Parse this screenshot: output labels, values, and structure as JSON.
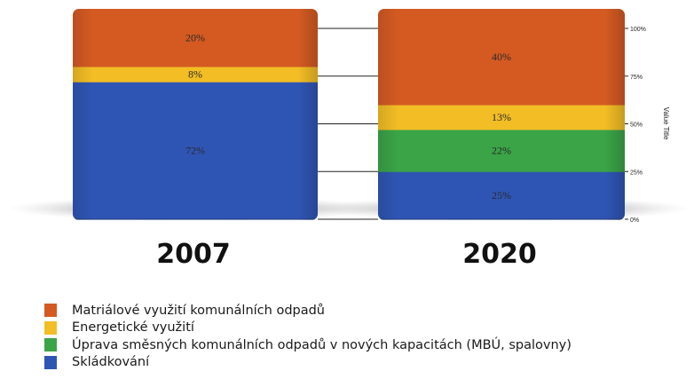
{
  "chart_data": {
    "type": "bar",
    "stacked": true,
    "categories": [
      "2007",
      "2020"
    ],
    "series": [
      {
        "name": "Skládkování",
        "color": "#2f55b4",
        "values": [
          72,
          25
        ],
        "labels": [
          "72%",
          "25%"
        ]
      },
      {
        "name": "Úprava směsných komunálních odpadů v nových kapacitách (MBÚ, spalovny)",
        "color": "#3aa447",
        "values": [
          0,
          22
        ],
        "labels": [
          "",
          "22%"
        ]
      },
      {
        "name": "Energetické využití",
        "color": "#f2bd25",
        "values": [
          8,
          13
        ],
        "labels": [
          "8%",
          "13%"
        ]
      },
      {
        "name": "Matriálové využití komunálních odpadů",
        "color": "#d45a22",
        "values": [
          20,
          40
        ],
        "labels": [
          "20%",
          "40%"
        ]
      }
    ],
    "ylim": [
      0,
      100
    ],
    "yticks": [
      "0%",
      "25%",
      "50%",
      "75%",
      "100%"
    ],
    "ylabel": "Value Title",
    "legend_position": "bottom"
  },
  "legend": [
    {
      "label": "Matriálové využití komunálních odpadů",
      "color": "#d45a22"
    },
    {
      "label": "Energetické využití",
      "color": "#f2bd25"
    },
    {
      "label": "Úprava směsných komunálních odpadů v nových kapacitách (MBÚ, spalovny)",
      "color": "#3aa447"
    },
    {
      "label": "Skládkování",
      "color": "#2f55b4"
    }
  ]
}
